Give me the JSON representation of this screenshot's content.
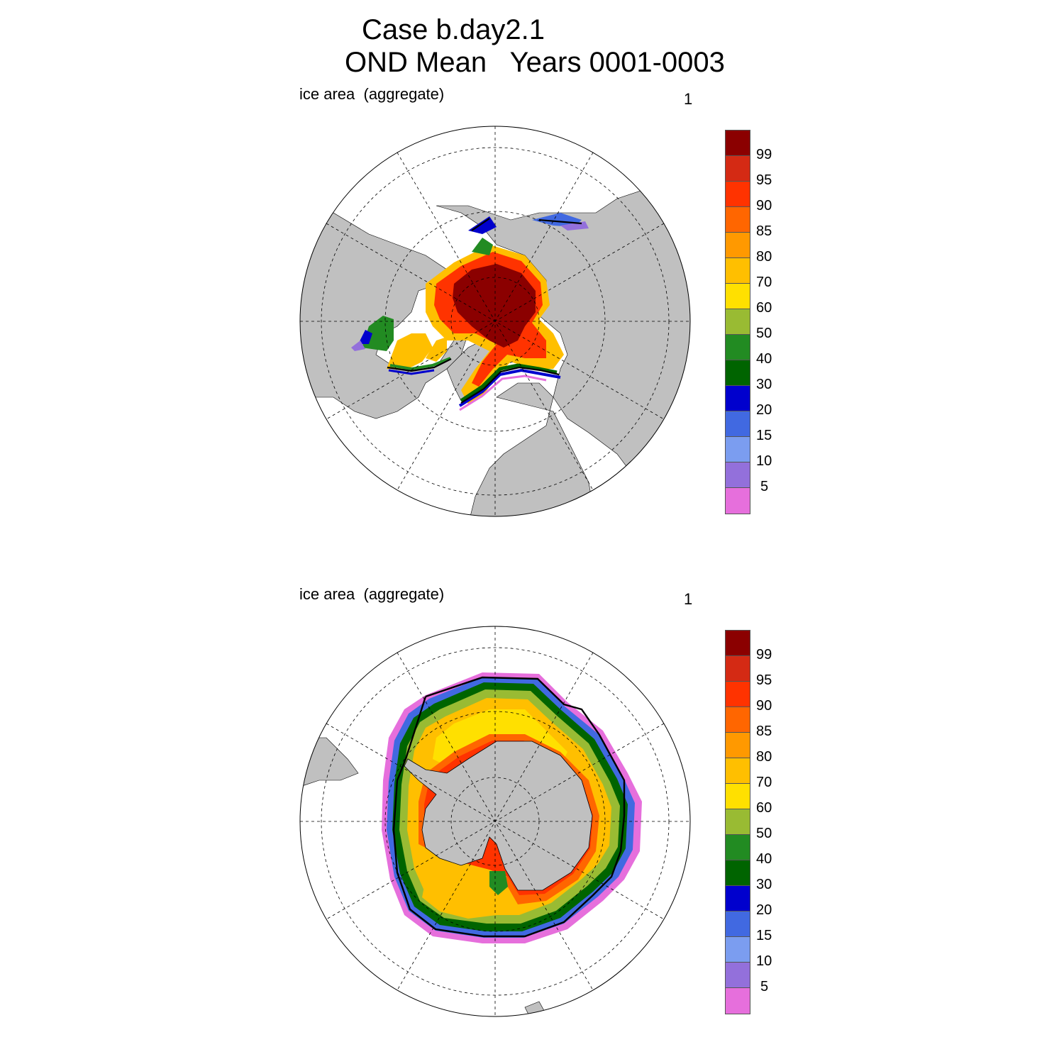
{
  "title": {
    "line1": "Case b.day2.1",
    "line2": "OND Mean   Years 0001-0003"
  },
  "panels": [
    {
      "label": "ice area  (aggregate)",
      "number": "1",
      "hemisphere": "north"
    },
    {
      "label": "ice area  (aggregate)",
      "number": "1",
      "hemisphere": "south"
    }
  ],
  "colorbar": {
    "labels": [
      "99",
      "95",
      "90",
      "85",
      "80",
      "70",
      "60",
      "50",
      "40",
      "30",
      "20",
      "15",
      "10",
      "5"
    ],
    "colors": [
      "#8b0000",
      "#d42a14",
      "#ff3300",
      "#ff6600",
      "#ff9900",
      "#ffbf00",
      "#ffe000",
      "#99bb33",
      "#228b22",
      "#006400",
      "#0000cd",
      "#4169e1",
      "#7b9df0",
      "#9370db",
      "#e66fdc"
    ]
  },
  "colors": {
    "land": "#c0c0c0",
    "ocean": "#ffffff"
  }
}
